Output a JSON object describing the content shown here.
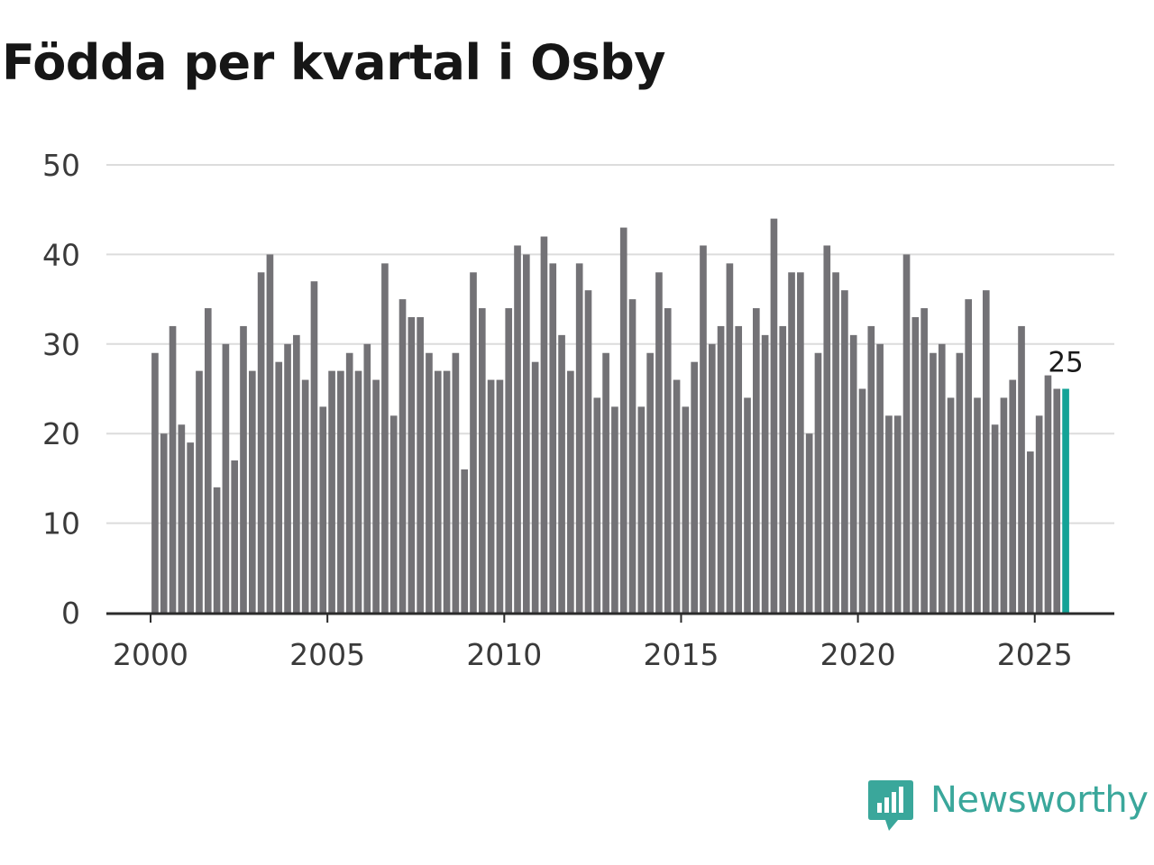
{
  "chart_data": {
    "type": "bar",
    "title": "Födda per kvartal i Osby",
    "xlabel": "",
    "ylabel": "",
    "ylim": [
      0,
      50
    ],
    "xlim": [
      1998.75,
      2027.25
    ],
    "y_ticks": [
      "0",
      "10",
      "20",
      "30",
      "40",
      "50"
    ],
    "x_ticks": [
      "2000",
      "2005",
      "2010",
      "2015",
      "2020",
      "2025"
    ],
    "grid": true,
    "x_start": 2000.125,
    "x_step": 0.25,
    "bar_color": "#737276",
    "highlight_color": "#14a397",
    "highlight_label": "25",
    "values": [
      29,
      20,
      32,
      21,
      19,
      27,
      34,
      14,
      30,
      17,
      32,
      27,
      38,
      40,
      28,
      30,
      31,
      26,
      37,
      23,
      27,
      27,
      29,
      27,
      30,
      26,
      39,
      22,
      35,
      33,
      33,
      29,
      27,
      27,
      29,
      16,
      38,
      34,
      26,
      26,
      34,
      41,
      40,
      28,
      42,
      39,
      31,
      27,
      39,
      36,
      24,
      29,
      23,
      43,
      35,
      23,
      29,
      38,
      34,
      26,
      23,
      28,
      41,
      30,
      32,
      39,
      32,
      24,
      34,
      31,
      44,
      32,
      38,
      38,
      20,
      29,
      41,
      38,
      36,
      31,
      25,
      32,
      30,
      22,
      22,
      40,
      33,
      34,
      29,
      30,
      24,
      29,
      35,
      24,
      36,
      21,
      24,
      26,
      32,
      18,
      22,
      26.5,
      25,
      25
    ]
  },
  "brand": {
    "name": "Newsworthy",
    "logo_icon": "newsworthy-logo-icon"
  }
}
